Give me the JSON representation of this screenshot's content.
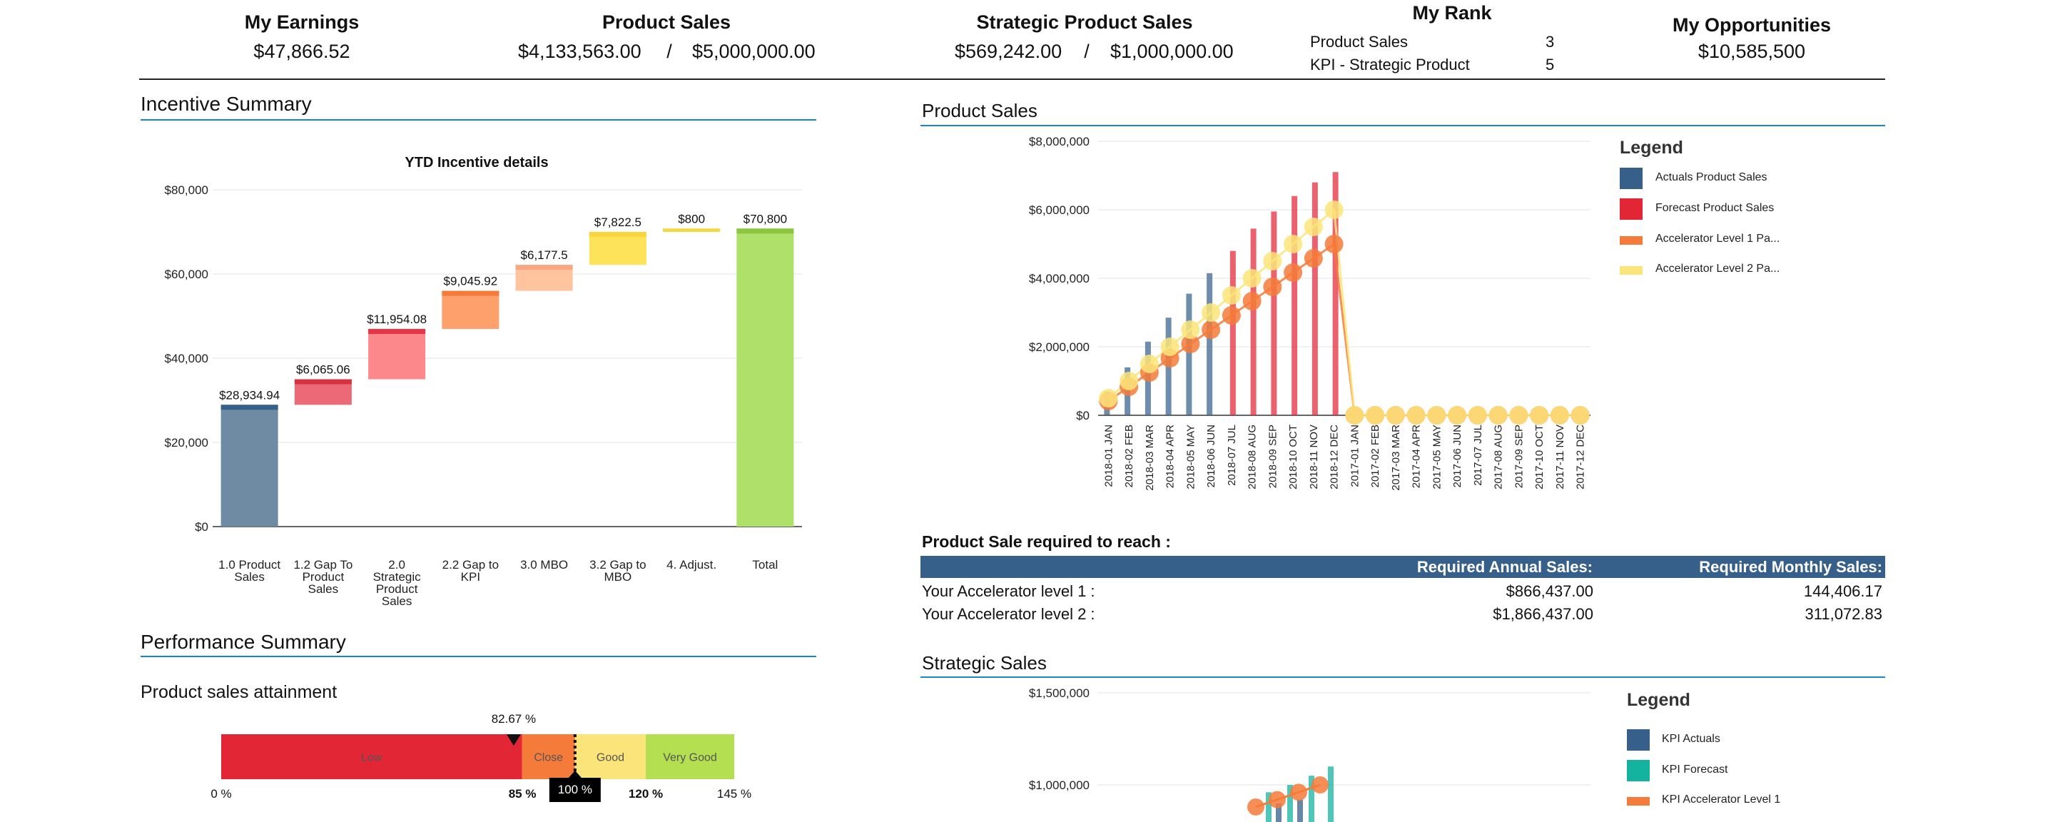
{
  "header": {
    "my_earnings": {
      "title": "My Earnings",
      "value": "$47,866.52"
    },
    "product_sales": {
      "title": "Product Sales",
      "actual": "$4,133,563.00",
      "sep": "/",
      "target": "$5,000,000.00"
    },
    "strategic_sales": {
      "title": "Strategic Product Sales",
      "actual": "$569,242.00",
      "sep": "/",
      "target": "$1,000,000.00"
    },
    "my_rank": {
      "title": "My Rank",
      "rows": [
        {
          "label": "Product Sales",
          "value": "3"
        },
        {
          "label": "KPI - Strategic Product",
          "value": "5"
        }
      ]
    },
    "my_opportunities": {
      "title": "My Opportunities",
      "value": "$10,585,500"
    }
  },
  "incentive_summary": {
    "title": "Incentive Summary"
  },
  "performance_summary": {
    "title": "Performance Summary",
    "subtitle": "Product sales attainment",
    "marker_label": "82.67 %",
    "target_label": "100 %",
    "bands": [
      {
        "label": "Low",
        "from": 0,
        "to": 85,
        "color": "#e32636"
      },
      {
        "label": "Close",
        "from": 85,
        "to": 100,
        "color": "#f47b3a"
      },
      {
        "label": "Good",
        "from": 100,
        "to": 120,
        "color": "#fbe57a"
      },
      {
        "label": "Very Good",
        "from": 120,
        "to": 145,
        "color": "#b3df50"
      }
    ],
    "marker_value": 82.67,
    "target_value": 100,
    "ticks": [
      {
        "value": 0,
        "label": "0 %",
        "bold": false
      },
      {
        "value": 85,
        "label": "85 %",
        "bold": true
      },
      {
        "value": 120,
        "label": "120 %",
        "bold": true
      },
      {
        "value": 145,
        "label": "145 %",
        "bold": false
      }
    ]
  },
  "product_sales_section": {
    "title": "Product Sales"
  },
  "required": {
    "title": "Product Sale required to reach :",
    "col_annual": "Required Annual Sales:",
    "col_monthly": "Required Monthly Sales:",
    "rows": [
      {
        "label": "Your Accelerator level 1 :",
        "annual": "$866,437.00",
        "monthly": "144,406.17"
      },
      {
        "label": "Your Accelerator level 2 :",
        "annual": "$1,866,437.00",
        "monthly": "311,072.83"
      }
    ]
  },
  "strategic_section": {
    "title": "Strategic Sales"
  },
  "chart_data": [
    {
      "type": "bar",
      "subtype": "waterfall",
      "title": "YTD Incentive details",
      "ylim": [
        0,
        80000
      ],
      "yticks": [
        0,
        20000,
        40000,
        60000,
        80000
      ],
      "ytick_labels": [
        "$0",
        "$20,000",
        "$40,000",
        "$60,000",
        "$80,000"
      ],
      "categories": [
        [
          "1.0 Product",
          "Sales"
        ],
        [
          "1.2 Gap To",
          "Product",
          "Sales"
        ],
        [
          "2.0",
          "Strategic",
          "Product",
          "Sales"
        ],
        [
          "2.2 Gap to",
          "KPI"
        ],
        [
          "3.0 MBO"
        ],
        [
          "3.2 Gap to",
          "MBO"
        ],
        [
          "4. Adjust."
        ],
        [
          "Total"
        ]
      ],
      "values": [
        28934.94,
        6065.06,
        11954.08,
        9045.92,
        6177.5,
        7822.5,
        800,
        70800
      ],
      "labels": [
        "$28,934.94",
        "$6,065.06",
        "$11,954.08",
        "$9,045.92",
        "$6,177.5",
        "$7,822.5",
        "$800",
        "$70,800"
      ],
      "colors": [
        "#6f8aa3",
        "#ec6a78",
        "#fd888c",
        "#fda06c",
        "#fdc49e",
        "#fde35a",
        "#fde76a",
        "#aee06a"
      ],
      "top_colors": [
        "#365f8a",
        "#d8313f",
        "#e73545",
        "#f47b3a",
        "#f8a880",
        "#fbd540",
        "#f5d940",
        "#8cc63f"
      ],
      "is_total": [
        false,
        false,
        false,
        false,
        false,
        false,
        false,
        true
      ]
    },
    {
      "type": "bar",
      "subtype": "bar+line",
      "title": "Product Sales",
      "ylim": [
        0,
        8000000
      ],
      "yticks": [
        0,
        2000000,
        4000000,
        6000000,
        8000000
      ],
      "ytick_labels": [
        "$0",
        "$2,000,000",
        "$4,000,000",
        "$6,000,000",
        "$8,000,000"
      ],
      "categories": [
        "2018-01 JAN",
        "2018-02 FEB",
        "2018-03 MAR",
        "2018-04 APR",
        "2018-05 MAY",
        "2018-06 JUN",
        "2018-07 JUL",
        "2018-08 AUG",
        "2018-09 SEP",
        "2018-10 OCT",
        "2018-11 NOV",
        "2018-12 DEC",
        "2017-01 JAN",
        "2017-02 FEB",
        "2017-03 MAR",
        "2017-04 APR",
        "2017-05 MAY",
        "2017-06 JUN",
        "2017-07 JUL",
        "2017-08 AUG",
        "2017-09 SEP",
        "2017-10 OCT",
        "2017-11 NOV",
        "2017-12 DEC"
      ],
      "legend_title": "Legend",
      "series": [
        {
          "name": "Actuals Product Sales",
          "kind": "bar",
          "color": "#365f8a",
          "values": [
            700000,
            1400000,
            2150000,
            2850000,
            3550000,
            4150000,
            0,
            0,
            0,
            0,
            0,
            0,
            0,
            0,
            0,
            0,
            0,
            0,
            0,
            0,
            0,
            0,
            0,
            0
          ]
        },
        {
          "name": "Forecast Product Sales",
          "kind": "bar",
          "color": "#e32636",
          "values": [
            0,
            0,
            0,
            0,
            0,
            0,
            4800000,
            5450000,
            5950000,
            6400000,
            6800000,
            7100000,
            0,
            0,
            0,
            0,
            0,
            0,
            0,
            0,
            0,
            0,
            0,
            0
          ]
        },
        {
          "name": "Accelerator Level 1 Pa...",
          "kind": "line",
          "color": "#f47b3a",
          "values": [
            416667,
            833333,
            1250000,
            1666667,
            2083333,
            2500000,
            2916667,
            3333333,
            3750000,
            4166667,
            4583333,
            5000000,
            0,
            0,
            0,
            0,
            0,
            0,
            0,
            0,
            0,
            0,
            0,
            0
          ]
        },
        {
          "name": "Accelerator Level 2 Pa...",
          "kind": "line",
          "color": "#fbe57a",
          "values": [
            500000,
            1000000,
            1500000,
            2000000,
            2500000,
            3000000,
            3500000,
            4000000,
            4500000,
            5000000,
            5500000,
            6000000,
            0,
            0,
            0,
            0,
            0,
            0,
            0,
            0,
            0,
            0,
            0,
            0
          ]
        }
      ]
    },
    {
      "type": "bar",
      "subtype": "bar+line",
      "title": "Strategic Sales",
      "ylim_visible": [
        700000,
        1500000
      ],
      "yticks": [
        1000000,
        1500000
      ],
      "ytick_labels": [
        "$1,000,000",
        "$1,500,000"
      ],
      "legend_title": "Legend",
      "visible_partial": true,
      "series": [
        {
          "name": "KPI Actuals",
          "kind": "bar",
          "color": "#365f8a",
          "values_visible": [
            900000,
            920000
          ]
        },
        {
          "name": "KPI Forecast",
          "kind": "bar",
          "color": "#14b3a0",
          "values_visible": [
            960000,
            1000000,
            1050000,
            1100000
          ]
        },
        {
          "name": "KPI Accelerator Level 1",
          "kind": "line",
          "color": "#f47b3a",
          "values_visible": [
            880000,
            920000,
            960000,
            1000000
          ]
        }
      ]
    }
  ]
}
